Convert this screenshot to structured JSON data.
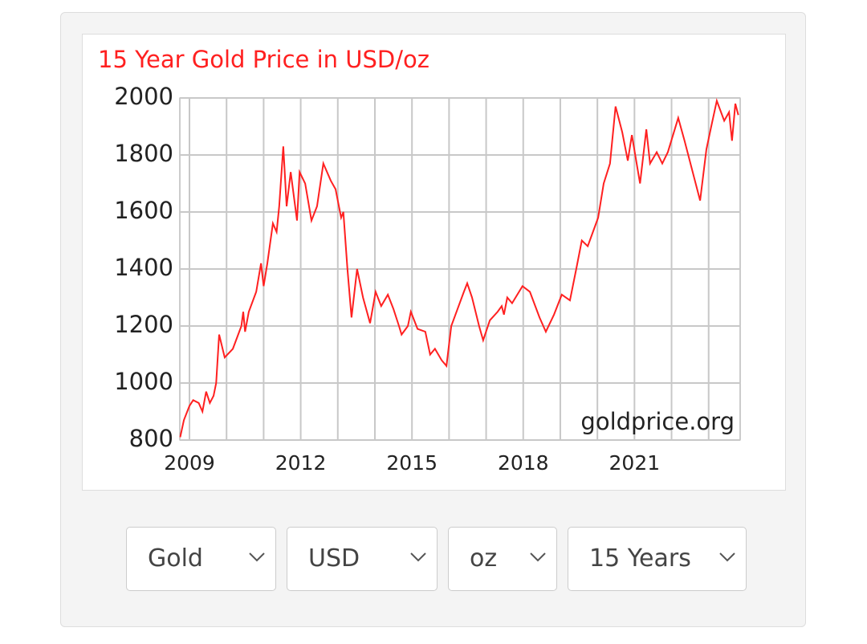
{
  "chart_data": {
    "type": "line",
    "title": "15 Year Gold Price in USD/oz",
    "annotation": "goldprice.org",
    "x": [
      2008.75,
      2008.85,
      2009.0,
      2009.1,
      2009.25,
      2009.35,
      2009.45,
      2009.55,
      2009.65,
      2009.72,
      2009.8,
      2009.95,
      2010.17,
      2010.4,
      2010.45,
      2010.5,
      2010.6,
      2010.8,
      2010.93,
      2011.0,
      2011.1,
      2011.25,
      2011.35,
      2011.42,
      2011.53,
      2011.62,
      2011.73,
      2011.9,
      2011.97,
      2012.12,
      2012.29,
      2012.44,
      2012.61,
      2012.81,
      2012.94,
      2013.09,
      2013.15,
      2013.26,
      2013.37,
      2013.52,
      2013.68,
      2013.87,
      2014.02,
      2014.17,
      2014.35,
      2014.5,
      2014.65,
      2014.72,
      2014.89,
      2014.97,
      2015.15,
      2015.36,
      2015.49,
      2015.62,
      2015.8,
      2015.93,
      2016.06,
      2016.23,
      2016.4,
      2016.49,
      2016.62,
      2016.81,
      2016.92,
      2017.1,
      2017.31,
      2017.42,
      2017.48,
      2017.57,
      2017.7,
      2017.98,
      2018.18,
      2018.44,
      2018.61,
      2018.83,
      2019.04,
      2019.26,
      2019.43,
      2019.58,
      2019.74,
      2020.02,
      2020.17,
      2020.34,
      2020.49,
      2020.67,
      2020.82,
      2020.93,
      2021.15,
      2021.32,
      2021.42,
      2021.6,
      2021.75,
      2021.9,
      2022.18,
      2022.35,
      2022.61,
      2022.77,
      2022.94,
      2023.07,
      2023.22,
      2023.42,
      2023.55,
      2023.63,
      2023.72,
      2023.8
    ],
    "series": [
      {
        "name": "Gold",
        "color": "#ff2020",
        "values": [
          810,
          870,
          920,
          940,
          930,
          900,
          970,
          930,
          955,
          1000,
          1170,
          1090,
          1120,
          1200,
          1250,
          1180,
          1250,
          1320,
          1420,
          1340,
          1420,
          1560,
          1530,
          1620,
          1830,
          1620,
          1740,
          1570,
          1740,
          1700,
          1570,
          1620,
          1770,
          1710,
          1680,
          1580,
          1600,
          1400,
          1230,
          1400,
          1300,
          1210,
          1320,
          1270,
          1310,
          1260,
          1200,
          1170,
          1200,
          1250,
          1190,
          1180,
          1100,
          1120,
          1080,
          1060,
          1200,
          1260,
          1320,
          1350,
          1300,
          1200,
          1150,
          1220,
          1250,
          1270,
          1240,
          1300,
          1280,
          1340,
          1320,
          1230,
          1180,
          1240,
          1310,
          1290,
          1400,
          1500,
          1480,
          1580,
          1700,
          1770,
          1970,
          1880,
          1780,
          1870,
          1700,
          1890,
          1770,
          1810,
          1770,
          1810,
          1930,
          1850,
          1720,
          1640,
          1820,
          1900,
          1990,
          1920,
          1950,
          1850,
          1980,
          1940
        ]
      }
    ],
    "xlim": [
      2008.74,
      2023.85
    ],
    "xticks": [
      2009,
      2012,
      2015,
      2018,
      2021
    ],
    "xminorticks": [
      2010,
      2011,
      2013,
      2014,
      2016,
      2017,
      2019,
      2020,
      2022,
      2023
    ],
    "ylim": [
      800,
      2000
    ],
    "yticks": [
      800,
      1000,
      1200,
      1400,
      1600,
      1800,
      2000
    ],
    "grid": true
  },
  "controls": [
    "Gold",
    "USD",
    "oz",
    "15 Years"
  ]
}
